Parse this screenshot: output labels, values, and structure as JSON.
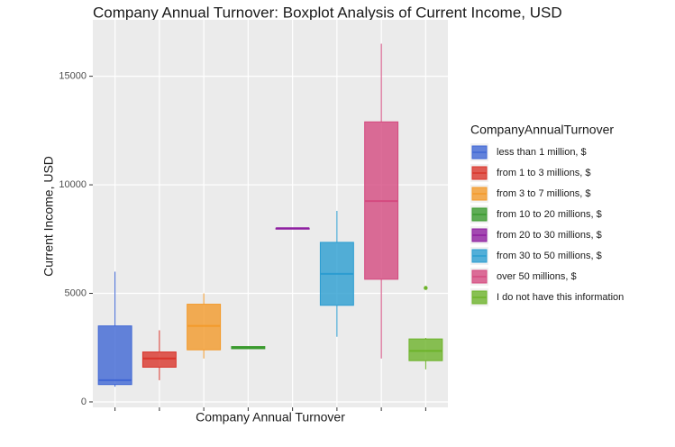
{
  "chart_data": {
    "type": "boxplot",
    "title": "Company Annual Turnover: Boxplot Analysis of Current Income, USD",
    "x_label": "Company Annual Turnover",
    "y_label": "Current Income, USD",
    "legend_title": "CompanyAnnualTurnover",
    "ylim": [
      -250,
      17600
    ],
    "yticks": [
      0,
      5000,
      10000,
      15000
    ],
    "grid": true,
    "series": [
      {
        "name": "less than 1 million, $",
        "color": "#3f66d4",
        "min": 700,
        "q1": 800,
        "median": 1000,
        "q3": 3500,
        "max": 6000,
        "outliers": []
      },
      {
        "name": "from 1 to 3 millions, $",
        "color": "#d9342b",
        "min": 1000,
        "q1": 1600,
        "median": 2000,
        "q3": 2300,
        "max": 3300,
        "outliers": []
      },
      {
        "name": "from 3 to 7 millions, $",
        "color": "#f39a2b",
        "min": 2000,
        "q1": 2400,
        "median": 3500,
        "q3": 4500,
        "max": 5000,
        "outliers": []
      },
      {
        "name": "from 10 to 20  millions, $",
        "color": "#3a9a2e",
        "min": 2450,
        "q1": 2450,
        "median": 2500,
        "q3": 2550,
        "max": 2550,
        "outliers": []
      },
      {
        "name": "from 20 to 30  millions, $",
        "color": "#8e1ea0",
        "min": 8000,
        "q1": 8000,
        "median": 8000,
        "q3": 8000,
        "max": 8000,
        "outliers": []
      },
      {
        "name": "from 30 to 50 millions, $",
        "color": "#2b9dd1",
        "min": 3000,
        "q1": 4450,
        "median": 5900,
        "q3": 7350,
        "max": 8800,
        "outliers": []
      },
      {
        "name": "over 50  millions, $",
        "color": "#d44a7f",
        "min": 2000,
        "q1": 5650,
        "median": 9250,
        "q3": 12900,
        "max": 16500,
        "outliers": []
      },
      {
        "name": "I do not have this information",
        "color": "#6db32a",
        "min": 1500,
        "q1": 1900,
        "median": 2350,
        "q3": 2900,
        "max": 2950,
        "outliers": [
          5250
        ]
      }
    ]
  }
}
